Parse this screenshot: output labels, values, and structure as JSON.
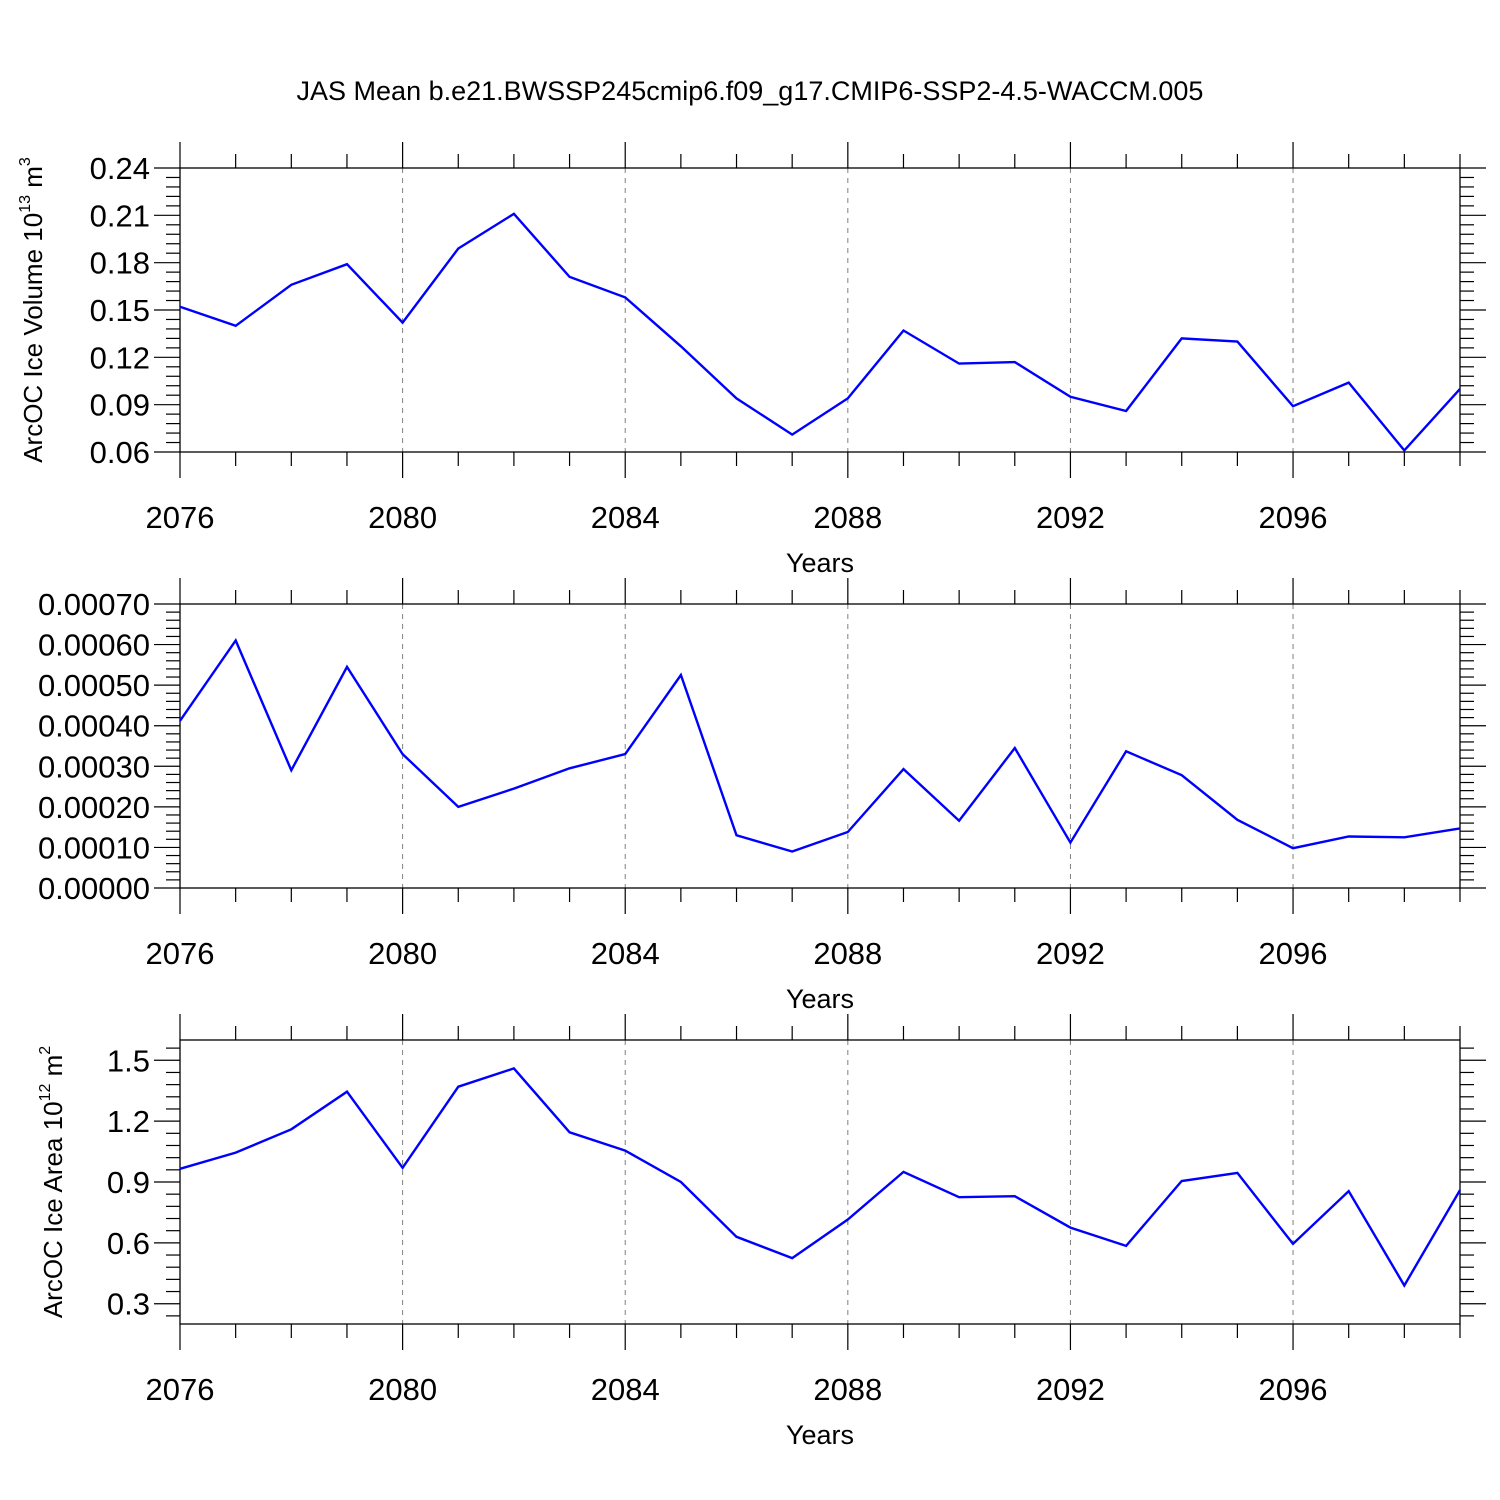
{
  "figure": {
    "title": "JAS Mean b.e21.BWSSP245cmip6.f09_g17.CMIP6-SSP2-4.5-WACCM.005"
  },
  "colors": {
    "series": "#0000ff",
    "axes": "#000000",
    "grid": "#808080"
  },
  "chart_data": [
    {
      "type": "line",
      "title": "JAS Mean b.e21.BWSSP245cmip6.f09_g17.CMIP6-SSP2-4.5-WACCM.005",
      "xlabel": "Years",
      "ylabel": {
        "text": "ArcOC Ice Volume 10",
        "sup1": "13",
        "mid": " m",
        "sup2": "3"
      },
      "xlim": [
        2076,
        2099
      ],
      "ylim": [
        0.06,
        0.24
      ],
      "xticks": [
        "2076",
        "2080",
        "2084",
        "2088",
        "2092",
        "2096"
      ],
      "xtick_values": [
        2076,
        2080,
        2084,
        2088,
        2092,
        2096
      ],
      "yticks": [
        "0.06",
        "0.09",
        "0.12",
        "0.15",
        "0.18",
        "0.21",
        "0.24"
      ],
      "ytick_values": [
        0.06,
        0.09,
        0.12,
        0.15,
        0.18,
        0.21,
        0.24
      ],
      "grid": "vertical dashed at major x ticks",
      "x": [
        2076,
        2077,
        2078,
        2079,
        2080,
        2081,
        2082,
        2083,
        2084,
        2085,
        2086,
        2087,
        2088,
        2089,
        2090,
        2091,
        2092,
        2093,
        2094,
        2095,
        2096,
        2097,
        2098,
        2099
      ],
      "values": [
        0.152,
        0.14,
        0.166,
        0.179,
        0.142,
        0.189,
        0.211,
        0.171,
        0.158,
        0.127,
        0.094,
        0.071,
        0.094,
        0.137,
        0.116,
        0.117,
        0.095,
        0.086,
        0.132,
        0.13,
        0.089,
        0.104,
        0.061,
        0.1
      ]
    },
    {
      "type": "line",
      "xlabel": "Years",
      "ylabel": null,
      "xlim": [
        2076,
        2099
      ],
      "ylim": [
        0.0,
        0.0007
      ],
      "xticks": [
        "2076",
        "2080",
        "2084",
        "2088",
        "2092",
        "2096"
      ],
      "xtick_values": [
        2076,
        2080,
        2084,
        2088,
        2092,
        2096
      ],
      "yticks": [
        "0.00000",
        "0.00010",
        "0.00020",
        "0.00030",
        "0.00040",
        "0.00050",
        "0.00060",
        "0.00070"
      ],
      "ytick_values": [
        0.0,
        0.0001,
        0.0002,
        0.0003,
        0.0004,
        0.0005,
        0.0006,
        0.0007
      ],
      "grid": "vertical dashed at major x ticks",
      "x": [
        2076,
        2077,
        2078,
        2079,
        2080,
        2081,
        2082,
        2083,
        2084,
        2085,
        2086,
        2087,
        2088,
        2089,
        2090,
        2091,
        2092,
        2093,
        2094,
        2095,
        2096,
        2097,
        2098,
        2099
      ],
      "values": [
        0.000412,
        0.00061,
        0.00029,
        0.000545,
        0.00033,
        0.0002,
        0.000245,
        0.000295,
        0.00033,
        0.000525,
        0.00013,
        9e-05,
        0.000138,
        0.000293,
        0.000166,
        0.000345,
        0.000112,
        0.000337,
        0.000278,
        0.000168,
        9.8e-05,
        0.000127,
        0.000125,
        0.000147
      ]
    },
    {
      "type": "line",
      "xlabel": "Years",
      "ylabel": {
        "text": "ArcOC Ice Area 10",
        "sup1": "12",
        "mid": " m",
        "sup2": "2"
      },
      "xlim": [
        2076,
        2099
      ],
      "ylim": [
        0.2,
        1.6
      ],
      "xticks": [
        "2076",
        "2080",
        "2084",
        "2088",
        "2092",
        "2096"
      ],
      "xtick_values": [
        2076,
        2080,
        2084,
        2088,
        2092,
        2096
      ],
      "yticks": [
        "0.3",
        "0.6",
        "0.9",
        "1.2",
        "1.5"
      ],
      "ytick_values": [
        0.3,
        0.6,
        0.9,
        1.2,
        1.5
      ],
      "grid": "vertical dashed at major x ticks",
      "x": [
        2076,
        2077,
        2078,
        2079,
        2080,
        2081,
        2082,
        2083,
        2084,
        2085,
        2086,
        2087,
        2088,
        2089,
        2090,
        2091,
        2092,
        2093,
        2094,
        2095,
        2096,
        2097,
        2098,
        2099
      ],
      "values": [
        0.965,
        1.045,
        1.16,
        1.345,
        0.97,
        1.37,
        1.46,
        1.145,
        1.055,
        0.9,
        0.63,
        0.525,
        0.715,
        0.95,
        0.825,
        0.83,
        0.675,
        0.585,
        0.905,
        0.945,
        0.595,
        0.855,
        0.39,
        0.86
      ]
    }
  ]
}
